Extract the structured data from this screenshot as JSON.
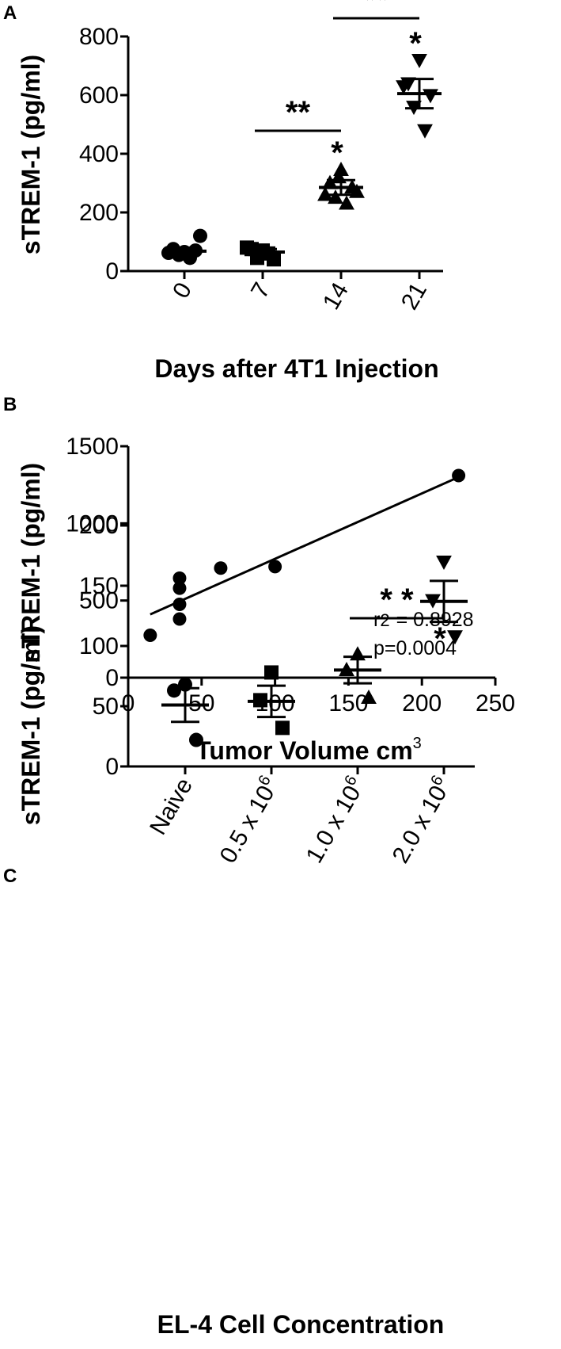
{
  "chart_data": [
    {
      "panel": "A",
      "type": "scatter",
      "ylabel": "sTREM-1 (pg/ml)",
      "xlabel": "Days after 4T1 Injection",
      "categories": [
        "0",
        "7",
        "14",
        "21"
      ],
      "yticks": [
        "0",
        "200",
        "400",
        "600",
        "800"
      ],
      "ylim": [
        0,
        800
      ],
      "groups": [
        {
          "category": "0",
          "marker": "circle",
          "points": [
            65,
            75,
            70,
            55,
            45,
            62,
            120
          ],
          "mean": 68,
          "sem": 12
        },
        {
          "category": "7",
          "marker": "square",
          "points": [
            70,
            75,
            40,
            45,
            60,
            80
          ],
          "mean": 65,
          "sem": 10
        },
        {
          "category": "14",
          "marker": "triangle-up",
          "points": [
            345,
            300,
            285,
            250,
            230,
            260,
            270,
            320
          ],
          "mean": 285,
          "sem": 25
        },
        {
          "category": "21",
          "marker": "triangle-down",
          "points": [
            720,
            640,
            600,
            560,
            480,
            630
          ],
          "mean": 605,
          "sem": 50
        }
      ],
      "significance": [
        {
          "from": "7",
          "to": "14",
          "label": "**"
        },
        {
          "from": "14",
          "to": "21",
          "label": "**"
        }
      ],
      "stars": [
        {
          "category": "14",
          "label": "*"
        },
        {
          "category": "21",
          "label": "*"
        }
      ]
    },
    {
      "panel": "B",
      "type": "scatter",
      "ylabel": "sTREM-1 (pg/ml)",
      "xlabel": "Tumor Volume cm",
      "xlabel_sup": "3",
      "xticks": [
        "0",
        "50",
        "100",
        "150",
        "200",
        "250"
      ],
      "yticks": [
        "0",
        "500",
        "1000",
        "1500"
      ],
      "xlim": [
        0,
        250
      ],
      "ylim": [
        0,
        1500
      ],
      "points": [
        {
          "x": 15,
          "y": 275
        },
        {
          "x": 35,
          "y": 380
        },
        {
          "x": 35,
          "y": 475
        },
        {
          "x": 35,
          "y": 580
        },
        {
          "x": 35,
          "y": 645
        },
        {
          "x": 63,
          "y": 710
        },
        {
          "x": 100,
          "y": 720
        },
        {
          "x": 225,
          "y": 1310
        }
      ],
      "fit_line": {
        "x": [
          15,
          225
        ],
        "y": [
          410,
          1300
        ]
      },
      "r2_label": "r",
      "r2_sub": "2",
      "r2_value": "= 0.8928",
      "p_value": "p=0.0004"
    },
    {
      "panel": "C",
      "type": "scatter",
      "ylabel": "sTREM-1 (pg/ml)",
      "xlabel": "EL-4 Cell Concentration",
      "categories": [
        "Naive",
        "0.5 x 10",
        "1.0 x 10",
        "2.0 x 10"
      ],
      "category_sup": [
        "",
        "6",
        "6",
        "6"
      ],
      "yticks": [
        "0",
        "50",
        "100",
        "150",
        "200"
      ],
      "ylim": [
        0,
        200
      ],
      "groups": [
        {
          "category": "Naive",
          "marker": "circle",
          "points": [
            68,
            63,
            22
          ],
          "mean": 51,
          "sem": 14
        },
        {
          "category": "0.5",
          "marker": "square",
          "points": [
            78,
            55,
            32
          ],
          "mean": 54,
          "sem": 13
        },
        {
          "category": "1.0",
          "marker": "triangle-up",
          "points": [
            93,
            80,
            57
          ],
          "mean": 80,
          "sem": 11
        },
        {
          "category": "2.0",
          "marker": "triangle-down",
          "points": [
            170,
            138,
            108
          ],
          "mean": 137,
          "sem": 17
        }
      ],
      "significance": [
        {
          "from": "1.0",
          "to": "2.0",
          "label": "* *"
        }
      ],
      "stars": [
        {
          "category": "2.0",
          "label": "*"
        }
      ]
    }
  ]
}
